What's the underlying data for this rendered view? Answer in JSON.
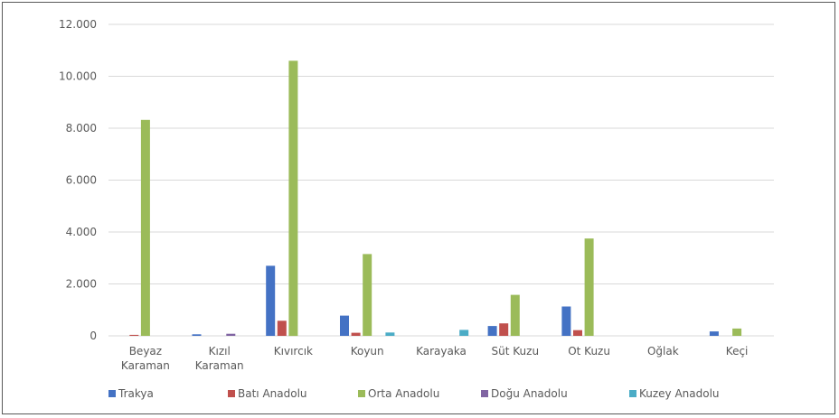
{
  "chart_data": {
    "type": "bar",
    "title": "",
    "xlabel": "",
    "ylabel": "",
    "ylim": [
      0,
      12000
    ],
    "y_ticks": [
      "0",
      "2.000",
      "4.000",
      "6.000",
      "8.000",
      "10.000",
      "12.000"
    ],
    "y_tick_values": [
      0,
      2000,
      4000,
      6000,
      8000,
      10000,
      12000
    ],
    "grid": true,
    "legend_position": "bottom",
    "categories": [
      [
        "Beyaz",
        "Karaman"
      ],
      [
        "Kızıl",
        "Karaman"
      ],
      [
        "Kıvırcık"
      ],
      [
        "Koyun"
      ],
      [
        "Karayaka"
      ],
      [
        "Süt Kuzu"
      ],
      [
        "Ot Kuzu"
      ],
      [
        "Oğlak"
      ],
      [
        "Keçi"
      ]
    ],
    "series": [
      {
        "name": "Trakya",
        "color": "#4472c4",
        "values": [
          0,
          60,
          2700,
          780,
          0,
          380,
          1130,
          0,
          170
        ]
      },
      {
        "name": "Batı Anadolu",
        "color": "#c0504d",
        "values": [
          40,
          0,
          580,
          120,
          0,
          480,
          220,
          0,
          0
        ]
      },
      {
        "name": "Orta Anadolu",
        "color": "#9bbb59",
        "values": [
          8320,
          0,
          10600,
          3150,
          0,
          1580,
          3750,
          0,
          280
        ]
      },
      {
        "name": "Doğu Anadolu",
        "color": "#8064a2",
        "values": [
          0,
          80,
          0,
          0,
          0,
          0,
          0,
          0,
          0
        ]
      },
      {
        "name": "Kuzey Anadolu",
        "color": "#4bacc6",
        "values": [
          0,
          0,
          0,
          130,
          230,
          0,
          0,
          0,
          0
        ]
      }
    ]
  }
}
